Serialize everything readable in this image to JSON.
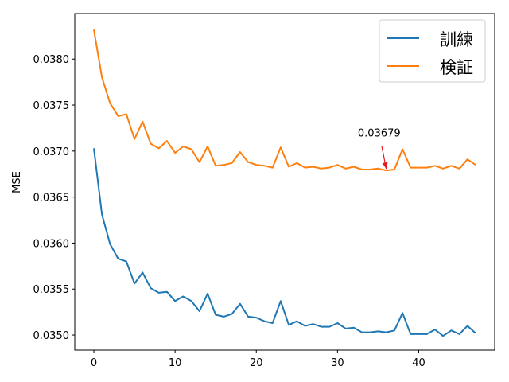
{
  "chart_data": {
    "type": "line",
    "title": "",
    "xlabel": "",
    "ylabel": "MSE",
    "xlim": [
      -2.35,
      49.35
    ],
    "ylim": [
      0.034836,
      0.038495
    ],
    "xticks": [
      0,
      10,
      20,
      30,
      40
    ],
    "xtick_labels": [
      "0",
      "10",
      "20",
      "30",
      "40"
    ],
    "yticks": [
      0.035,
      0.0355,
      0.036,
      0.0365,
      0.037,
      0.0375,
      0.038
    ],
    "ytick_labels": [
      "0.0350",
      "0.0355",
      "0.0360",
      "0.0365",
      "0.0370",
      "0.0375",
      "0.0380"
    ],
    "grid": false,
    "legend_position": "top-right",
    "x": [
      0,
      1,
      2,
      3,
      4,
      5,
      6,
      7,
      8,
      9,
      10,
      11,
      12,
      13,
      14,
      15,
      16,
      17,
      18,
      19,
      20,
      21,
      22,
      23,
      24,
      25,
      26,
      27,
      28,
      29,
      30,
      31,
      32,
      33,
      34,
      35,
      36,
      37,
      38,
      39,
      40,
      41,
      42,
      43,
      44,
      45,
      46,
      47
    ],
    "series": [
      {
        "name": "訓練",
        "color": "#1f77b4",
        "values": [
          0.03703,
          0.03631,
          0.03599,
          0.03583,
          0.0358,
          0.03556,
          0.03568,
          0.03551,
          0.03546,
          0.03547,
          0.03537,
          0.03542,
          0.03537,
          0.03526,
          0.03545,
          0.03522,
          0.0352,
          0.03523,
          0.03534,
          0.0352,
          0.03519,
          0.03515,
          0.03513,
          0.03537,
          0.03511,
          0.03515,
          0.0351,
          0.03512,
          0.03509,
          0.03509,
          0.03513,
          0.03507,
          0.03508,
          0.03503,
          0.03503,
          0.03504,
          0.03503,
          0.03505,
          0.03524,
          0.03501,
          0.03501,
          0.03501,
          0.03506,
          0.03499,
          0.03505,
          0.03501,
          0.0351,
          0.03502
        ]
      },
      {
        "name": "検証",
        "color": "#ff7f0e",
        "values": [
          0.03832,
          0.0378,
          0.03752,
          0.03738,
          0.0374,
          0.03713,
          0.03732,
          0.03708,
          0.03703,
          0.03711,
          0.03698,
          0.03705,
          0.03702,
          0.03688,
          0.03705,
          0.03684,
          0.03685,
          0.03687,
          0.03699,
          0.03688,
          0.03685,
          0.03684,
          0.03682,
          0.03704,
          0.03683,
          0.03687,
          0.03682,
          0.03683,
          0.03681,
          0.03682,
          0.03685,
          0.03681,
          0.03683,
          0.0368,
          0.0368,
          0.03681,
          0.03679,
          0.0368,
          0.03702,
          0.03682,
          0.03682,
          0.03682,
          0.03684,
          0.03681,
          0.03684,
          0.03681,
          0.03691,
          0.03685
        ]
      }
    ],
    "annotation": {
      "text": "0.03679",
      "x": 36,
      "y": 0.03679,
      "text_x": 32.5,
      "text_y": 0.03716,
      "color": "#e41a1c"
    }
  }
}
